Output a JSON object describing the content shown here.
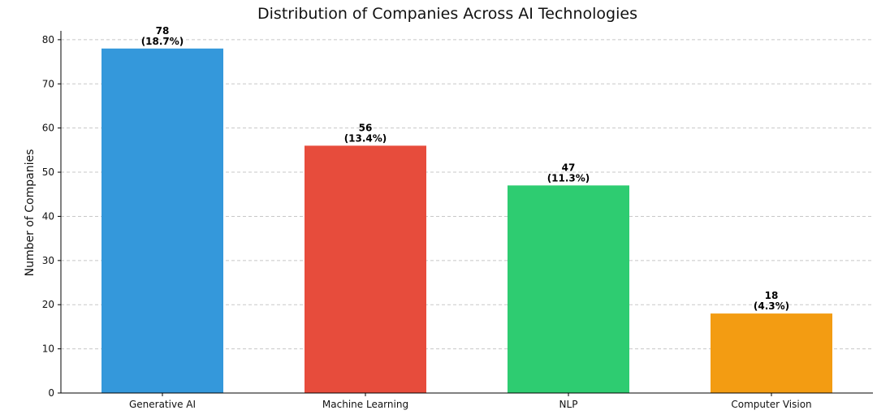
{
  "chart_data": {
    "type": "bar",
    "title": "Distribution of Companies Across AI Technologies",
    "xlabel": "",
    "ylabel": "Number of Companies",
    "categories": [
      "Generative AI",
      "Machine Learning",
      "NLP",
      "Computer Vision"
    ],
    "values": [
      78,
      56,
      47,
      18
    ],
    "value_labels": [
      "78",
      "56",
      "47",
      "18"
    ],
    "percent_labels": [
      "(18.7%)",
      "(13.4%)",
      "(11.3%)",
      "(4.3%)"
    ],
    "colors": [
      "#3498db",
      "#e74c3c",
      "#2ecc71",
      "#f39c12"
    ],
    "ylim": [
      0,
      82
    ],
    "yticks": [
      0,
      10,
      20,
      30,
      40,
      50,
      60,
      70,
      80
    ],
    "ytick_labels": [
      "0",
      "10",
      "20",
      "30",
      "40",
      "50",
      "60",
      "70",
      "80"
    ],
    "grid": "horizontal-dashed",
    "legend": "none"
  }
}
